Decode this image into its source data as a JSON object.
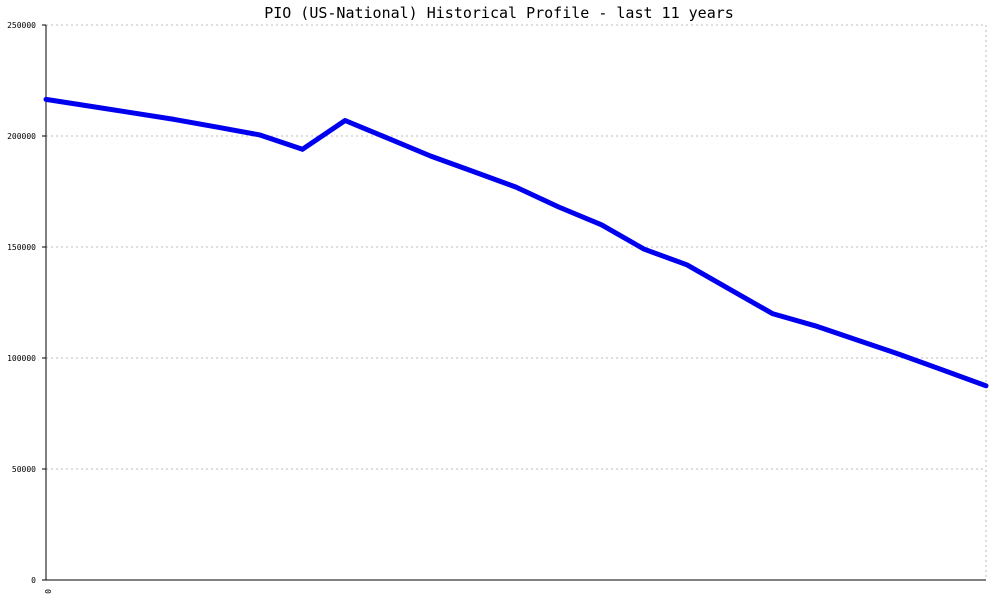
{
  "chart_data": {
    "type": "line",
    "title": "PIO (US-National) Historical Profile - last 11 years",
    "xlabel": "",
    "ylabel": "",
    "ylim": [
      0,
      250000
    ],
    "y_ticks": [
      "0",
      "50000",
      "100000",
      "150000",
      "200000",
      "250000"
    ],
    "x_ticks": [
      "0"
    ],
    "xlim": [
      0,
      22
    ],
    "grid": true,
    "legend": "none",
    "colors": {
      "series": "#0000ee",
      "grid": "#bdbdbd",
      "axis": "#000000"
    },
    "series": [
      {
        "name": "",
        "x": [
          0,
          1,
          2,
          3,
          4,
          5,
          6,
          7,
          8,
          9,
          10,
          11,
          12,
          13,
          14,
          15,
          16,
          17,
          18,
          19,
          20,
          21,
          22
        ],
        "values": [
          216500,
          213500,
          210500,
          207500,
          204000,
          200500,
          194000,
          207000,
          199000,
          191000,
          184000,
          177000,
          168000,
          160000,
          149000,
          142000,
          131000,
          120000,
          114500,
          108000,
          101500,
          94500,
          87500
        ]
      }
    ]
  }
}
